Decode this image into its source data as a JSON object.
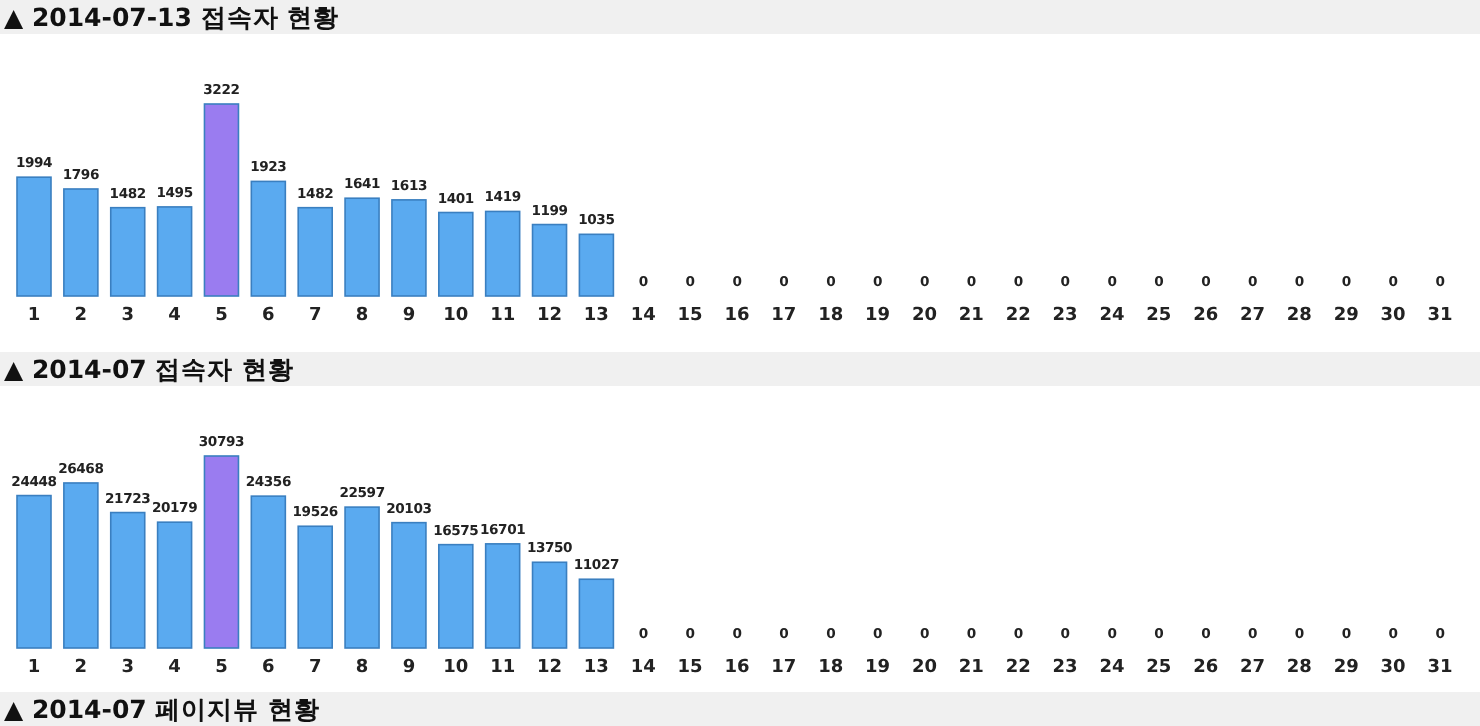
{
  "chart_data": [
    {
      "type": "bar",
      "title": "▲ 2014-07-13 접속자 현황",
      "categories": [
        "1",
        "2",
        "3",
        "4",
        "5",
        "6",
        "7",
        "8",
        "9",
        "10",
        "11",
        "12",
        "13",
        "14",
        "15",
        "16",
        "17",
        "18",
        "19",
        "20",
        "21",
        "22",
        "23",
        "24",
        "25",
        "26",
        "27",
        "28",
        "29",
        "30",
        "31"
      ],
      "values": [
        1994,
        1796,
        1482,
        1495,
        3222,
        1923,
        1482,
        1641,
        1613,
        1401,
        1419,
        1199,
        1035,
        0,
        0,
        0,
        0,
        0,
        0,
        0,
        0,
        0,
        0,
        0,
        0,
        0,
        0,
        0,
        0,
        0,
        0
      ],
      "colors": [
        "#5aaaf0",
        "#5aaaf0",
        "#5aaaf0",
        "#5aaaf0",
        "#9a7cf0",
        "#5aaaf0",
        "#5aaaf0",
        "#5aaaf0",
        "#5aaaf0",
        "#5aaaf0",
        "#5aaaf0",
        "#5aaaf0",
        "#5aaaf0",
        "#5aaaf0",
        "#5aaaf0",
        "#5aaaf0",
        "#5aaaf0",
        "#5aaaf0",
        "#5aaaf0",
        "#5aaaf0",
        "#5aaaf0",
        "#5aaaf0",
        "#5aaaf0",
        "#5aaaf0",
        "#5aaaf0",
        "#5aaaf0",
        "#5aaaf0",
        "#5aaaf0",
        "#5aaaf0",
        "#5aaaf0",
        "#5aaaf0"
      ],
      "data_labels": true
    },
    {
      "type": "bar",
      "title": "▲ 2014-07 접속자 현황",
      "categories": [
        "1",
        "2",
        "3",
        "4",
        "5",
        "6",
        "7",
        "8",
        "9",
        "10",
        "11",
        "12",
        "13",
        "14",
        "15",
        "16",
        "17",
        "18",
        "19",
        "20",
        "21",
        "22",
        "23",
        "24",
        "25",
        "26",
        "27",
        "28",
        "29",
        "30",
        "31"
      ],
      "values": [
        24448,
        26468,
        21723,
        20179,
        30793,
        24356,
        19526,
        22597,
        20103,
        16575,
        16701,
        13750,
        11027,
        0,
        0,
        0,
        0,
        0,
        0,
        0,
        0,
        0,
        0,
        0,
        0,
        0,
        0,
        0,
        0,
        0,
        0
      ],
      "colors": [
        "#5aaaf0",
        "#5aaaf0",
        "#5aaaf0",
        "#5aaaf0",
        "#9a7cf0",
        "#5aaaf0",
        "#5aaaf0",
        "#5aaaf0",
        "#5aaaf0",
        "#5aaaf0",
        "#5aaaf0",
        "#5aaaf0",
        "#5aaaf0",
        "#5aaaf0",
        "#5aaaf0",
        "#5aaaf0",
        "#5aaaf0",
        "#5aaaf0",
        "#5aaaf0",
        "#5aaaf0",
        "#5aaaf0",
        "#5aaaf0",
        "#5aaaf0",
        "#5aaaf0",
        "#5aaaf0",
        "#5aaaf0",
        "#5aaaf0",
        "#5aaaf0",
        "#5aaaf0",
        "#5aaaf0",
        "#5aaaf0"
      ],
      "data_labels": true
    },
    {
      "type": "other",
      "title": "▲ 2014-07 페이지뷰 현황"
    }
  ]
}
